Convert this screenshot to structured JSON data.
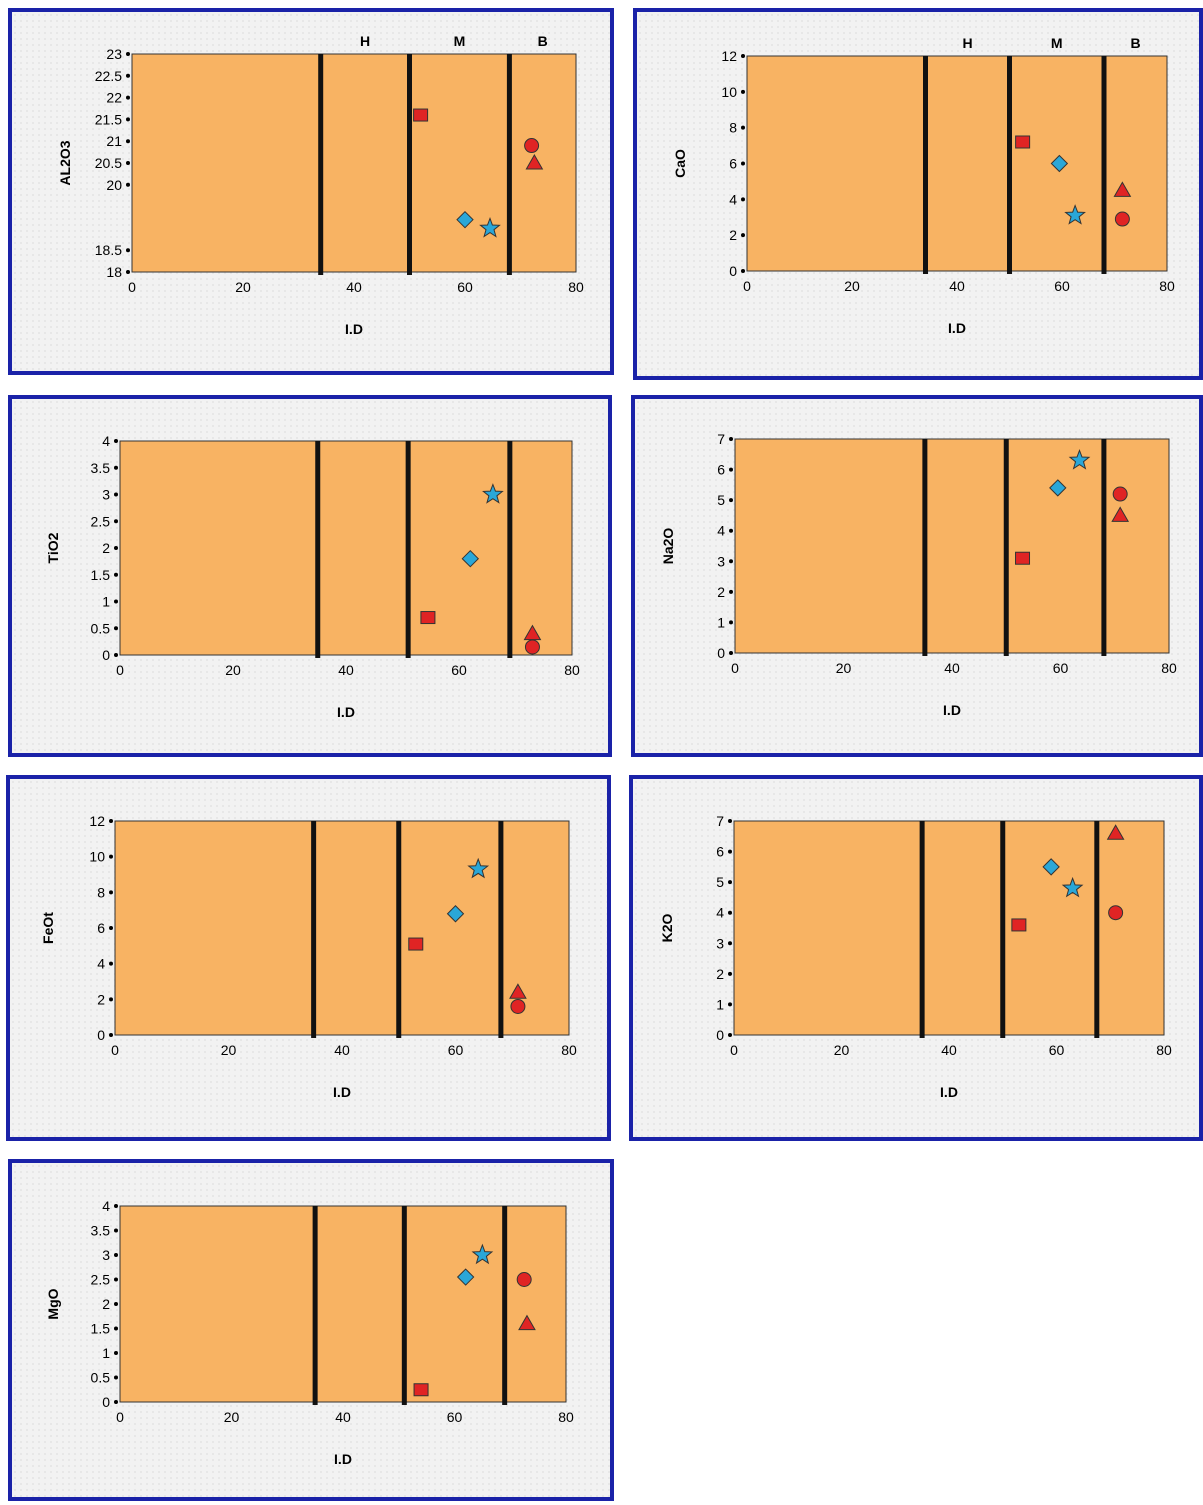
{
  "colors": {
    "panel_border": "#1a22a8",
    "plot_fill": "#f8b363",
    "boundary_line": "#111111",
    "red_marker": "#e02424",
    "blue_marker": "#2aa7d8"
  },
  "chart_data": [
    {
      "type": "scatter",
      "xlabel": "I.D",
      "ylabel": "AL2O3",
      "xlim": [
        0,
        80
      ],
      "ylim": [
        18,
        23
      ],
      "xticks": [
        0,
        20,
        40,
        60,
        80
      ],
      "yticks": [
        18,
        18.5,
        20,
        20.5,
        21,
        21.5,
        22,
        22.5,
        23
      ],
      "ytick_labels": [
        "18",
        "18.5",
        "20",
        "20.5",
        "21",
        "21.5",
        "22",
        "22.5",
        "23"
      ],
      "boundaries": [
        34,
        50,
        68
      ],
      "zones": [
        "H",
        "M",
        "B"
      ],
      "points": [
        {
          "shape": "square",
          "color": "red",
          "x": 52,
          "y": 21.6
        },
        {
          "shape": "diamond",
          "color": "blue",
          "x": 60,
          "y": 19.2
        },
        {
          "shape": "star",
          "color": "blue",
          "x": 64.5,
          "y": 19.0
        },
        {
          "shape": "circle",
          "color": "red",
          "x": 72,
          "y": 20.9
        },
        {
          "shape": "triangle",
          "color": "red",
          "x": 72.5,
          "y": 20.5
        }
      ]
    },
    {
      "type": "scatter",
      "xlabel": "I.D",
      "ylabel": "CaO",
      "xlim": [
        0,
        80
      ],
      "ylim": [
        0,
        12
      ],
      "xticks": [
        0,
        20,
        40,
        60,
        80
      ],
      "yticks": [
        0,
        2,
        4,
        6,
        8,
        10,
        12
      ],
      "ytick_labels": [
        "0",
        "2",
        "4",
        "6",
        "8",
        "10",
        "12"
      ],
      "boundaries": [
        34,
        50,
        68
      ],
      "zones": [
        "H",
        "M",
        "B"
      ],
      "points": [
        {
          "shape": "square",
          "color": "red",
          "x": 52.5,
          "y": 7.2
        },
        {
          "shape": "diamond",
          "color": "blue",
          "x": 59.5,
          "y": 6.0
        },
        {
          "shape": "star",
          "color": "blue",
          "x": 62.5,
          "y": 3.1
        },
        {
          "shape": "triangle",
          "color": "red",
          "x": 71.5,
          "y": 4.5
        },
        {
          "shape": "circle",
          "color": "red",
          "x": 71.5,
          "y": 2.9
        }
      ]
    },
    {
      "type": "scatter",
      "xlabel": "I.D",
      "ylabel": "TiO2",
      "xlim": [
        0,
        80
      ],
      "ylim": [
        0,
        4
      ],
      "xticks": [
        0,
        20,
        40,
        60,
        80
      ],
      "yticks": [
        0,
        0.5,
        1,
        1.5,
        2,
        2.5,
        3,
        3.5,
        4
      ],
      "ytick_labels": [
        "0",
        "0.5",
        "1",
        "1.5",
        "2",
        "2.5",
        "3",
        "3.5",
        "4"
      ],
      "boundaries": [
        35,
        51,
        69
      ],
      "zones": [],
      "points": [
        {
          "shape": "square",
          "color": "red",
          "x": 54.5,
          "y": 0.7
        },
        {
          "shape": "diamond",
          "color": "blue",
          "x": 62,
          "y": 1.8
        },
        {
          "shape": "star",
          "color": "blue",
          "x": 66,
          "y": 3.0
        },
        {
          "shape": "triangle",
          "color": "red",
          "x": 73,
          "y": 0.4
        },
        {
          "shape": "circle",
          "color": "red",
          "x": 73,
          "y": 0.15
        }
      ]
    },
    {
      "type": "scatter",
      "xlabel": "I.D",
      "ylabel": "Na2O",
      "xlim": [
        0,
        80
      ],
      "ylim": [
        0,
        7
      ],
      "xticks": [
        0,
        20,
        40,
        60,
        80
      ],
      "yticks": [
        0,
        1,
        2,
        3,
        4,
        5,
        6,
        7
      ],
      "ytick_labels": [
        "0",
        "1",
        "2",
        "3",
        "4",
        "5",
        "6",
        "7"
      ],
      "boundaries": [
        35,
        50,
        68
      ],
      "zones": [],
      "points": [
        {
          "shape": "square",
          "color": "red",
          "x": 53,
          "y": 3.1
        },
        {
          "shape": "diamond",
          "color": "blue",
          "x": 59.5,
          "y": 5.4
        },
        {
          "shape": "star",
          "color": "blue",
          "x": 63.5,
          "y": 6.3
        },
        {
          "shape": "circle",
          "color": "red",
          "x": 71,
          "y": 5.2
        },
        {
          "shape": "triangle",
          "color": "red",
          "x": 71,
          "y": 4.5
        }
      ]
    },
    {
      "type": "scatter",
      "xlabel": "I.D",
      "ylabel": "FeOt",
      "xlim": [
        0,
        80
      ],
      "ylim": [
        0,
        12
      ],
      "xticks": [
        0,
        20,
        40,
        60,
        80
      ],
      "yticks": [
        0,
        2,
        4,
        6,
        8,
        10,
        12
      ],
      "ytick_labels": [
        "0",
        "2",
        "4",
        "6",
        "8",
        "10",
        "12"
      ],
      "boundaries": [
        35,
        50,
        68
      ],
      "zones": [],
      "points": [
        {
          "shape": "square",
          "color": "red",
          "x": 53,
          "y": 5.1
        },
        {
          "shape": "diamond",
          "color": "blue",
          "x": 60,
          "y": 6.8
        },
        {
          "shape": "star",
          "color": "blue",
          "x": 64,
          "y": 9.3
        },
        {
          "shape": "triangle",
          "color": "red",
          "x": 71,
          "y": 2.4
        },
        {
          "shape": "circle",
          "color": "red",
          "x": 71,
          "y": 1.6
        }
      ]
    },
    {
      "type": "scatter",
      "xlabel": "I.D",
      "ylabel": "K2O",
      "xlim": [
        0,
        80
      ],
      "ylim": [
        0,
        7
      ],
      "xticks": [
        0,
        20,
        40,
        60,
        80
      ],
      "yticks": [
        0,
        1,
        2,
        3,
        4,
        5,
        6,
        7
      ],
      "ytick_labels": [
        "0",
        "1",
        "2",
        "3",
        "4",
        "5",
        "6",
        "7"
      ],
      "boundaries": [
        35,
        50,
        67.5
      ],
      "zones": [],
      "points": [
        {
          "shape": "square",
          "color": "red",
          "x": 53,
          "y": 3.6
        },
        {
          "shape": "diamond",
          "color": "blue",
          "x": 59,
          "y": 5.5
        },
        {
          "shape": "star",
          "color": "blue",
          "x": 63,
          "y": 4.8
        },
        {
          "shape": "triangle",
          "color": "red",
          "x": 71,
          "y": 6.6
        },
        {
          "shape": "circle",
          "color": "red",
          "x": 71,
          "y": 4.0
        }
      ]
    },
    {
      "type": "scatter",
      "xlabel": "I.D",
      "ylabel": "MgO",
      "xlim": [
        0,
        80
      ],
      "ylim": [
        0,
        4
      ],
      "xticks": [
        0,
        20,
        40,
        60,
        80
      ],
      "yticks": [
        0,
        0.5,
        1,
        1.5,
        2,
        2.5,
        3,
        3.5,
        4
      ],
      "ytick_labels": [
        "0",
        "0.5",
        "1",
        "1.5",
        "2",
        "2.5",
        "3",
        "3.5",
        "4"
      ],
      "boundaries": [
        35,
        51,
        69
      ],
      "zones": [],
      "points": [
        {
          "shape": "square",
          "color": "red",
          "x": 54,
          "y": 0.25
        },
        {
          "shape": "diamond",
          "color": "blue",
          "x": 62,
          "y": 2.55
        },
        {
          "shape": "star",
          "color": "blue",
          "x": 65,
          "y": 3.0
        },
        {
          "shape": "circle",
          "color": "red",
          "x": 72.5,
          "y": 2.5
        },
        {
          "shape": "triangle",
          "color": "red",
          "x": 73,
          "y": 1.6
        }
      ]
    }
  ]
}
